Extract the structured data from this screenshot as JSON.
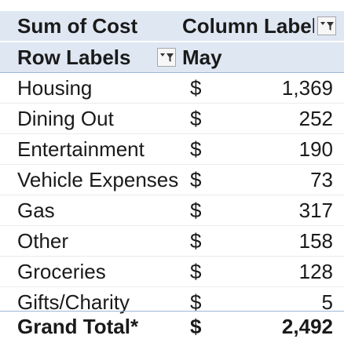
{
  "pivot": {
    "value_field": "Sum of Cost",
    "column_labels": "Column Label",
    "row_labels_header": "Row Labels",
    "column_item": "May",
    "currency_symbol": "$",
    "rows": [
      {
        "label": "Housing",
        "value": "1,369"
      },
      {
        "label": "Dining Out",
        "value": "252"
      },
      {
        "label": "Entertainment",
        "value": "190"
      },
      {
        "label": "Vehicle Expenses",
        "value": "73"
      },
      {
        "label": "Gas",
        "value": "317"
      },
      {
        "label": "Other",
        "value": "158"
      },
      {
        "label": "Groceries",
        "value": "128"
      },
      {
        "label": "Gifts/Charity",
        "value": "5"
      }
    ],
    "grand_total": {
      "label": "Grand Total*",
      "value": "2,492"
    }
  },
  "icons": {
    "filter": "filter-dropdown-icon"
  },
  "colors": {
    "header_band": "#dfe7f3",
    "text": "#1a1a1a",
    "rule": "#9fb6d6"
  }
}
